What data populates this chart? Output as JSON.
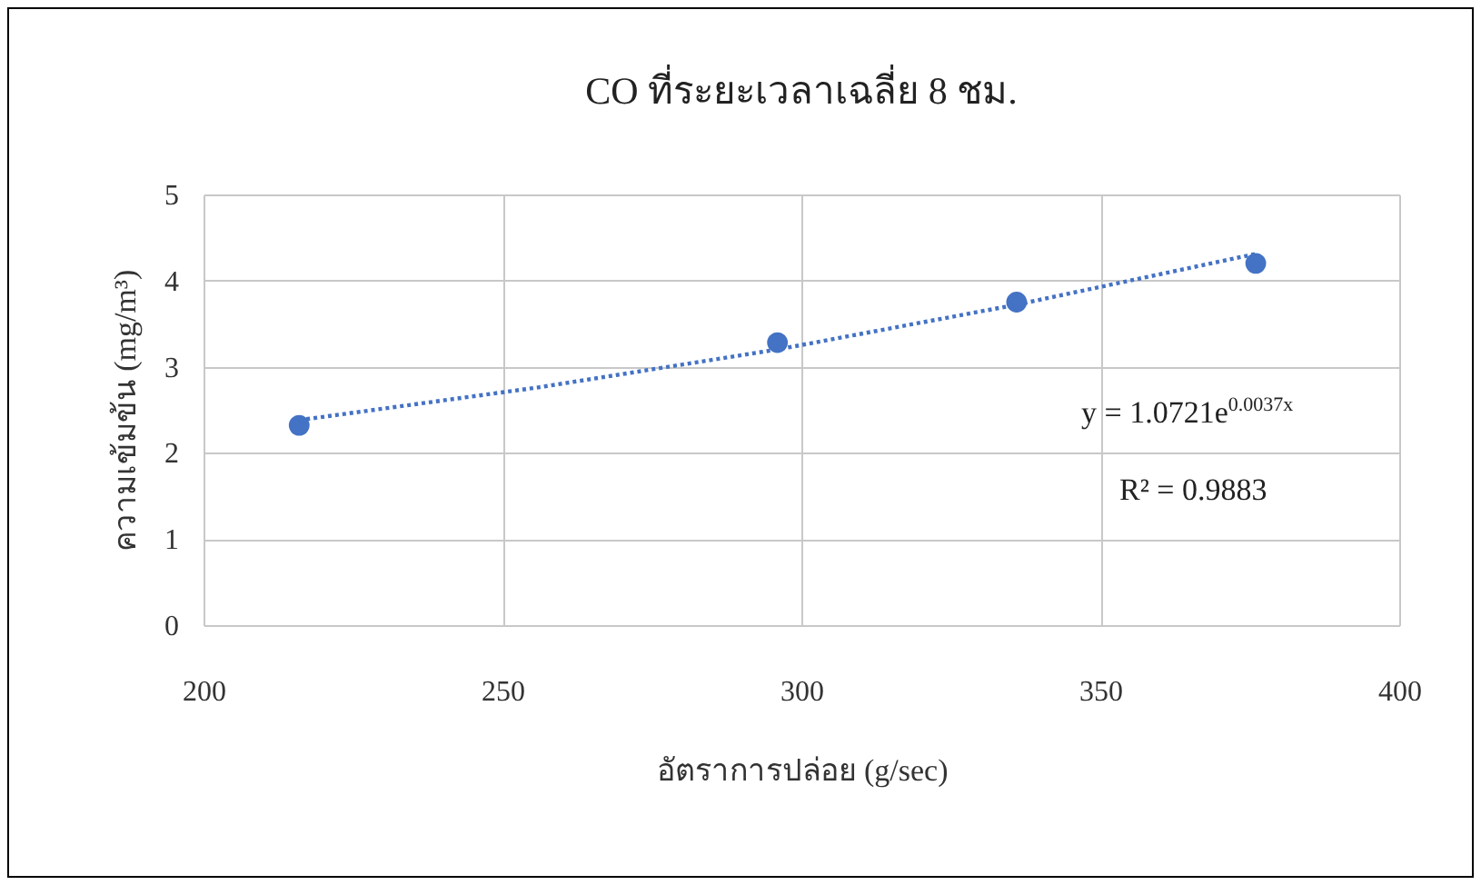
{
  "chart_data": {
    "type": "scatter",
    "title": "CO ที่ระยะเวลาเฉลี่ย 8 ชม.",
    "xlabel": "อัตราการปล่อย (g/sec)",
    "ylabel": "ความเข้มข้น (mg/m³)",
    "series": [
      {
        "color": "#4472c4",
        "marker": "circle",
        "x": [
          216,
          296,
          336,
          376
        ],
        "values": [
          2.32,
          3.28,
          3.75,
          4.2
        ]
      },
      {
        "type": "line",
        "color": "#4472c4",
        "line_style": "dotted",
        "x": [
          216,
          256,
          296,
          336,
          376
        ],
        "values": [
          2.38,
          2.76,
          3.2,
          3.72,
          4.31
        ]
      }
    ],
    "xlim": [
      200,
      400
    ],
    "xticks": [
      200,
      250,
      300,
      350,
      400
    ],
    "ylim": [
      0,
      5
    ],
    "yticks": [
      0,
      1,
      2,
      3,
      4,
      5
    ],
    "grid": true,
    "annotations": [
      "y = 1.0721e$^{0.0037x}$",
      "R² = 0.9883"
    ]
  }
}
